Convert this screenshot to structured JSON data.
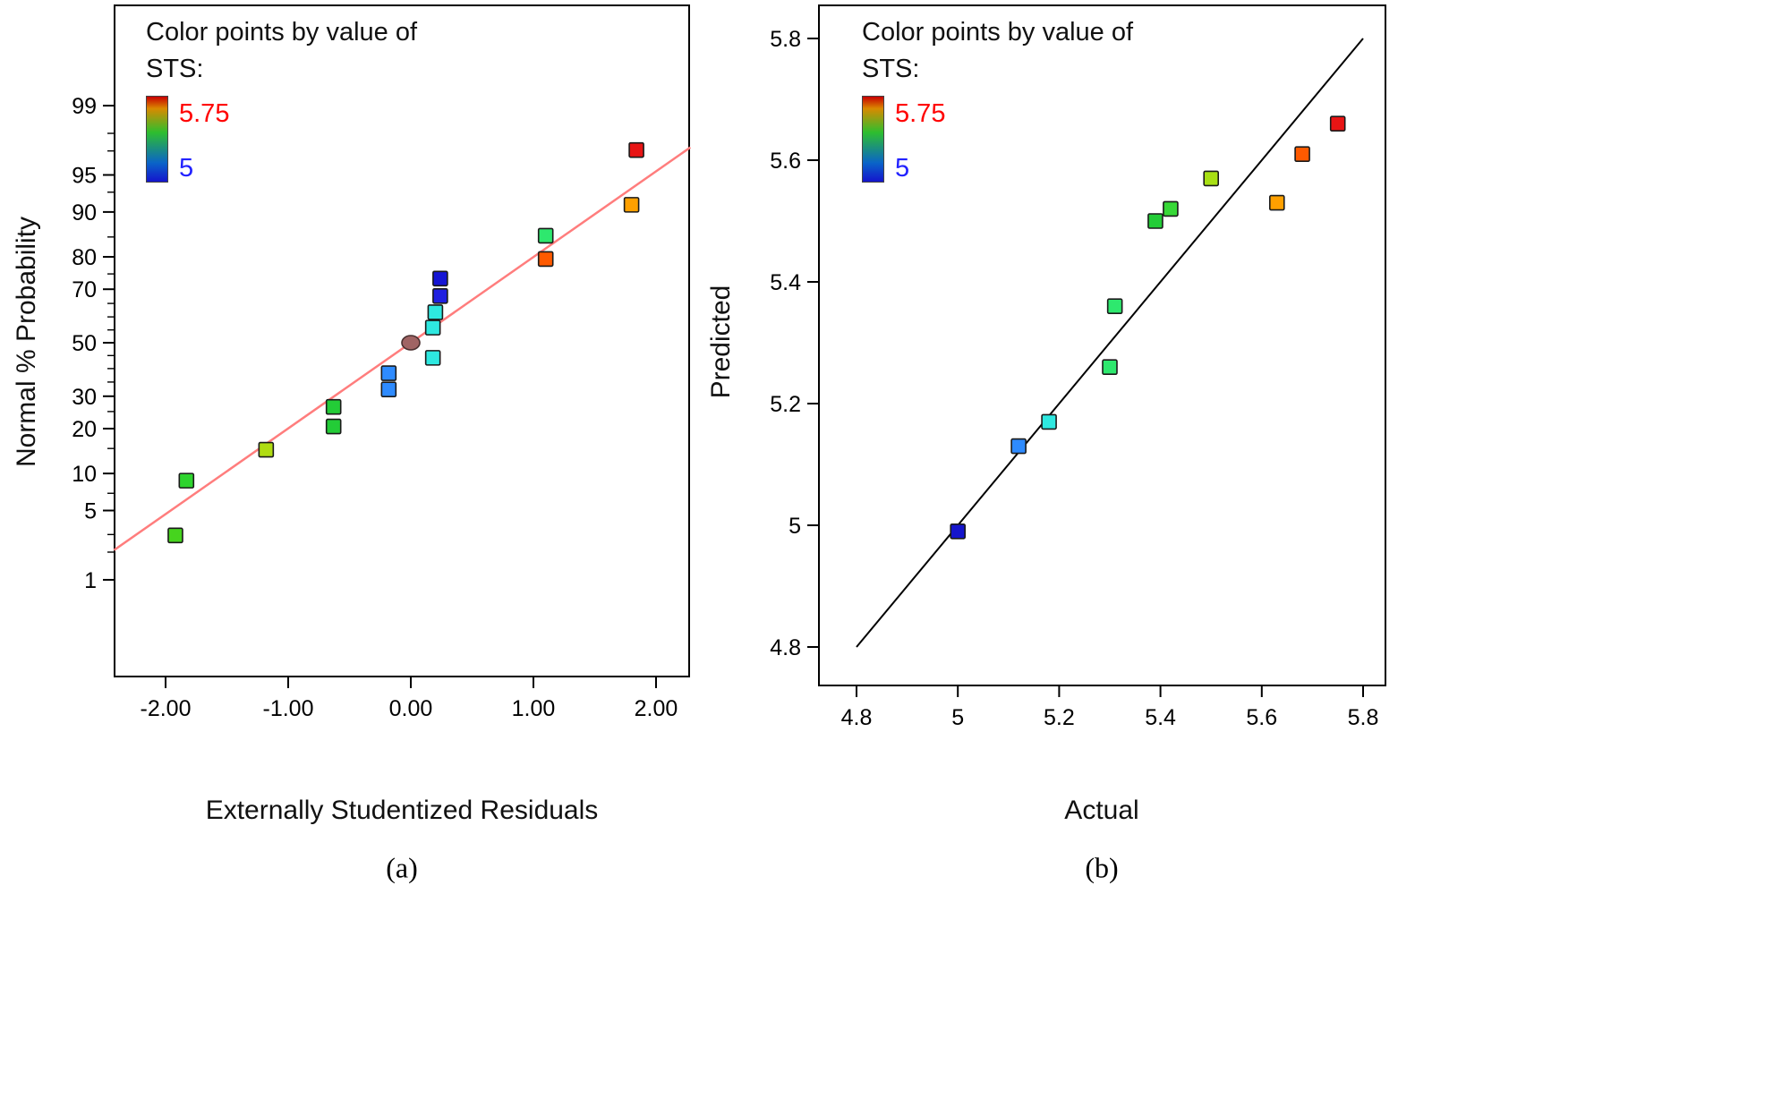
{
  "figure": {
    "bg": "#ffffff"
  },
  "captions": {
    "a": "(a)",
    "b": "(b)"
  },
  "legend": {
    "line1": "Color points by value of",
    "line2": "STS:",
    "max_label": "5.75",
    "min_label": "5",
    "max_color": "#ff0000",
    "min_color": "#2222ff",
    "gradient_stops": [
      "#c80000 0%",
      "#d98a00 14%",
      "#2ebe2e 42%",
      "#0a64c8 78%",
      "#1414cd 100%"
    ]
  },
  "chart_data": [
    {
      "id": "normal-probability-plot",
      "type": "scatter",
      "xlabel": "Externally Studentized Residuals",
      "ylabel": "Normal % Probability",
      "x_ticks": [
        -2,
        -1,
        0,
        1,
        2
      ],
      "x_tick_labels": [
        "-2.00",
        "-1.00",
        "0.00",
        "1.00",
        "2.00"
      ],
      "y_scale": "probit",
      "y_major_ticks": [
        1,
        5,
        10,
        20,
        30,
        50,
        70,
        80,
        90,
        95,
        99
      ],
      "y_minor_ticks": [
        2,
        3,
        7,
        15,
        25,
        35,
        40,
        45,
        55,
        60,
        65,
        75,
        85,
        93,
        97,
        98
      ],
      "xlim": [
        -2.42,
        2.28
      ],
      "fit_line": {
        "z_slope": 0.84,
        "z_intercept": 0,
        "color": "#ff7d7d"
      },
      "points": [
        {
          "x": -1.92,
          "p": 2.94,
          "sts_color": "#46d41e"
        },
        {
          "x": -1.83,
          "p": 8.82,
          "sts_color": "#2ed42e"
        },
        {
          "x": -1.18,
          "p": 14.71,
          "sts_color": "#b0dc12"
        },
        {
          "x": -0.63,
          "p": 20.59,
          "sts_color": "#23cc37"
        },
        {
          "x": -0.63,
          "p": 26.47,
          "sts_color": "#23cc37"
        },
        {
          "x": -0.18,
          "p": 32.35,
          "sts_color": "#2e8bff"
        },
        {
          "x": -0.18,
          "p": 38.24,
          "sts_color": "#2e8bff"
        },
        {
          "x": 0.18,
          "p": 44.12,
          "sts_color": "#2ee8e0"
        },
        {
          "x": 0.18,
          "p": 55.88,
          "sts_color": "#2ee8e0"
        },
        {
          "x": 0.2,
          "p": 61.76,
          "sts_color": "#2ee8e0"
        },
        {
          "x": 0.24,
          "p": 67.65,
          "sts_color": "#2020e0"
        },
        {
          "x": 0.24,
          "p": 73.53,
          "sts_color": "#1515d4"
        },
        {
          "x": 1.1,
          "p": 79.41,
          "sts_color": "#ff5a00"
        },
        {
          "x": 1.1,
          "p": 85.29,
          "sts_color": "#2ee86e"
        },
        {
          "x": 1.8,
          "p": 91.18,
          "sts_color": "#ffa000"
        },
        {
          "x": 1.84,
          "p": 97.06,
          "sts_color": "#e81414"
        }
      ],
      "center_point": {
        "x": 0.0,
        "p": 50.0,
        "color": "#a06464",
        "shape": "circle"
      }
    },
    {
      "id": "predicted-vs-actual",
      "type": "scatter",
      "xlabel": "Actual",
      "ylabel": "Predicted",
      "tick_values": [
        4.8,
        5,
        5.2,
        5.4,
        5.6,
        5.8
      ],
      "tick_labels": [
        "4.8",
        "5",
        "5.2",
        "5.4",
        "5.6",
        "5.8"
      ],
      "xlim": [
        4.726,
        5.844
      ],
      "ylim": [
        4.737,
        5.854
      ],
      "identity_line": {
        "x1": 4.8,
        "y1": 4.8,
        "x2": 5.8,
        "y2": 5.8,
        "color": "#000000"
      },
      "points": [
        {
          "x": 5.0,
          "y": 4.99,
          "sts_color": "#1515cc"
        },
        {
          "x": 5.12,
          "y": 5.13,
          "sts_color": "#2e8bff"
        },
        {
          "x": 5.18,
          "y": 5.17,
          "sts_color": "#2ee8e0"
        },
        {
          "x": 5.3,
          "y": 5.26,
          "sts_color": "#2ee86e"
        },
        {
          "x": 5.31,
          "y": 5.36,
          "sts_color": "#2ee86e"
        },
        {
          "x": 5.39,
          "y": 5.5,
          "sts_color": "#23cc37"
        },
        {
          "x": 5.42,
          "y": 5.52,
          "sts_color": "#37d837"
        },
        {
          "x": 5.5,
          "y": 5.57,
          "sts_color": "#a8e014"
        },
        {
          "x": 5.63,
          "y": 5.53,
          "sts_color": "#ffa000"
        },
        {
          "x": 5.68,
          "y": 5.61,
          "sts_color": "#ff5a00"
        },
        {
          "x": 5.75,
          "y": 5.66,
          "sts_color": "#e81414"
        }
      ]
    }
  ]
}
